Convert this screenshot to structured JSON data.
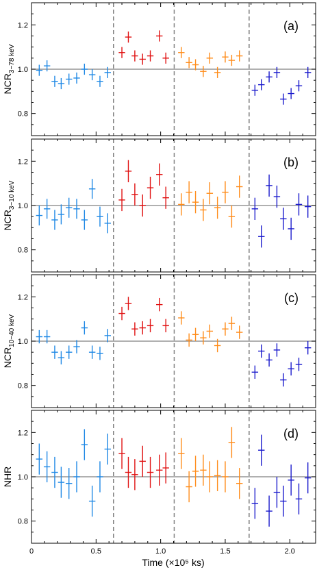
{
  "figure": {
    "xlabel": "Time (×10⁵ ks)",
    "x_ticks": [
      "0",
      "0.5",
      "1.0",
      "1.5",
      "2.0"
    ],
    "y_ticks": [
      "0.8",
      "1.0",
      "1.2"
    ]
  },
  "colors": {
    "segment_1": "#1e88e5",
    "segment_2": "#e01010",
    "segment_3": "#ff8c1a",
    "segment_4": "#1a1acc",
    "reference_line": "#808080",
    "boundary_line": "#808080"
  },
  "chart_data": {
    "type": "scatter",
    "xlim": [
      0,
      2.2
    ],
    "ylim": [
      0.7,
      1.3
    ],
    "x_ticks": [
      0,
      0.5,
      1.0,
      1.5,
      2.0
    ],
    "y_ticks": [
      0.8,
      1.0,
      1.2
    ],
    "reference_y": 1.0,
    "segment_boundaries": [
      0.635,
      1.105,
      1.685
    ],
    "x_error": 0.025,
    "panels": [
      {
        "tag": "(a)",
        "ylabel": "NCR",
        "ylabel_sub": "3−78 keV",
        "series": [
          {
            "segment": 1,
            "x": [
              0.06,
              0.12,
              0.18,
              0.23,
              0.29,
              0.35,
              0.41,
              0.47,
              0.53,
              0.59
            ],
            "y": [
              0.995,
              1.015,
              0.945,
              0.935,
              0.955,
              0.96,
              1.0,
              0.975,
              0.945,
              0.985
            ],
            "err": [
              0.025,
              0.025,
              0.025,
              0.025,
              0.025,
              0.025,
              0.025,
              0.025,
              0.025,
              0.025
            ]
          },
          {
            "segment": 2,
            "x": [
              0.7,
              0.75,
              0.8,
              0.86,
              0.92,
              0.99,
              1.04
            ],
            "y": [
              1.075,
              1.145,
              1.06,
              1.045,
              1.06,
              1.15,
              1.05
            ],
            "err": [
              0.025,
              0.025,
              0.025,
              0.025,
              0.025,
              0.025,
              0.025
            ]
          },
          {
            "segment": 3,
            "x": [
              1.16,
              1.22,
              1.27,
              1.33,
              1.38,
              1.44,
              1.5,
              1.55,
              1.61
            ],
            "y": [
              1.075,
              1.03,
              1.02,
              0.99,
              1.05,
              0.985,
              1.055,
              1.04,
              1.06
            ],
            "err": [
              0.025,
              0.025,
              0.025,
              0.025,
              0.025,
              0.025,
              0.025,
              0.025,
              0.025
            ]
          },
          {
            "segment": 4,
            "x": [
              1.73,
              1.78,
              1.84,
              1.9,
              1.95,
              2.01,
              2.07,
              2.14
            ],
            "y": [
              0.905,
              0.93,
              0.965,
              0.985,
              0.865,
              0.89,
              0.925,
              0.985
            ],
            "err": [
              0.025,
              0.025,
              0.025,
              0.025,
              0.025,
              0.025,
              0.025,
              0.025
            ]
          }
        ]
      },
      {
        "tag": "(b)",
        "ylabel": "NCR",
        "ylabel_sub": "3−10 keV",
        "series": [
          {
            "segment": 1,
            "x": [
              0.06,
              0.12,
              0.18,
              0.23,
              0.29,
              0.35,
              0.41,
              0.47,
              0.53,
              0.59
            ],
            "y": [
              0.955,
              0.985,
              0.935,
              0.96,
              0.99,
              0.985,
              0.935,
              1.075,
              0.95,
              0.92
            ],
            "err": [
              0.045,
              0.045,
              0.045,
              0.045,
              0.045,
              0.045,
              0.045,
              0.045,
              0.045,
              0.045
            ]
          },
          {
            "segment": 2,
            "x": [
              0.7,
              0.75,
              0.8,
              0.86,
              0.92,
              0.99,
              1.04
            ],
            "y": [
              1.025,
              1.155,
              1.05,
              1.0,
              1.08,
              1.14,
              1.035
            ],
            "err": [
              0.05,
              0.05,
              0.05,
              0.05,
              0.05,
              0.05,
              0.05
            ]
          },
          {
            "segment": 3,
            "x": [
              1.16,
              1.22,
              1.27,
              1.33,
              1.38,
              1.44,
              1.5,
              1.55,
              1.61
            ],
            "y": [
              1.005,
              1.06,
              1.015,
              0.98,
              1.055,
              0.99,
              1.06,
              0.95,
              1.085
            ],
            "err": [
              0.05,
              0.05,
              0.05,
              0.05,
              0.05,
              0.05,
              0.05,
              0.05,
              0.05
            ]
          },
          {
            "segment": 4,
            "x": [
              1.73,
              1.78,
              1.84,
              1.9,
              1.95,
              2.01,
              2.07,
              2.14
            ],
            "y": [
              0.985,
              0.86,
              1.09,
              1.04,
              0.94,
              0.895,
              1.005,
              0.995
            ],
            "err": [
              0.05,
              0.05,
              0.05,
              0.05,
              0.05,
              0.05,
              0.05,
              0.05
            ]
          }
        ]
      },
      {
        "tag": "(c)",
        "ylabel": "NCR",
        "ylabel_sub": "10−40 keV",
        "series": [
          {
            "segment": 1,
            "x": [
              0.06,
              0.12,
              0.18,
              0.23,
              0.29,
              0.35,
              0.41,
              0.47,
              0.53,
              0.59
            ],
            "y": [
              1.02,
              1.02,
              0.95,
              0.925,
              0.95,
              0.975,
              1.06,
              0.95,
              0.945,
              1.025
            ],
            "err": [
              0.03,
              0.03,
              0.03,
              0.03,
              0.03,
              0.03,
              0.03,
              0.03,
              0.03,
              0.03
            ]
          },
          {
            "segment": 2,
            "x": [
              0.7,
              0.75,
              0.8,
              0.86,
              0.92,
              0.99,
              1.04
            ],
            "y": [
              1.125,
              1.17,
              1.055,
              1.06,
              1.07,
              1.165,
              1.07
            ],
            "err": [
              0.03,
              0.03,
              0.03,
              0.03,
              0.03,
              0.03,
              0.03
            ]
          },
          {
            "segment": 3,
            "x": [
              1.16,
              1.22,
              1.27,
              1.33,
              1.38,
              1.44,
              1.5,
              1.55,
              1.61
            ],
            "y": [
              1.105,
              1.005,
              1.03,
              1.015,
              1.045,
              0.98,
              1.055,
              1.08,
              1.04
            ],
            "err": [
              0.03,
              0.03,
              0.03,
              0.03,
              0.03,
              0.03,
              0.03,
              0.03,
              0.03
            ]
          },
          {
            "segment": 4,
            "x": [
              1.73,
              1.78,
              1.84,
              1.9,
              1.95,
              2.01,
              2.07,
              2.14
            ],
            "y": [
              0.86,
              0.955,
              0.915,
              0.96,
              0.825,
              0.875,
              0.895,
              0.97
            ],
            "err": [
              0.03,
              0.03,
              0.03,
              0.03,
              0.03,
              0.03,
              0.03,
              0.03
            ]
          }
        ]
      },
      {
        "tag": "(d)",
        "ylabel": "NHR",
        "ylabel_sub": "",
        "series": [
          {
            "segment": 1,
            "x": [
              0.06,
              0.12,
              0.18,
              0.23,
              0.29,
              0.35,
              0.41,
              0.47,
              0.53,
              0.59
            ],
            "y": [
              1.08,
              1.045,
              1.02,
              0.975,
              0.97,
              1.0,
              1.145,
              0.89,
              1.0,
              1.125
            ],
            "err": [
              0.07,
              0.07,
              0.07,
              0.07,
              0.07,
              0.07,
              0.07,
              0.07,
              0.07,
              0.07
            ]
          },
          {
            "segment": 2,
            "x": [
              0.7,
              0.75,
              0.8,
              0.86,
              0.92,
              0.99,
              1.04
            ],
            "y": [
              1.105,
              1.02,
              1.01,
              1.07,
              1.02,
              1.03,
              1.04
            ],
            "err": [
              0.07,
              0.07,
              0.07,
              0.07,
              0.07,
              0.07,
              0.07
            ]
          },
          {
            "segment": 3,
            "x": [
              1.16,
              1.22,
              1.27,
              1.33,
              1.38,
              1.44,
              1.5,
              1.55,
              1.61
            ],
            "y": [
              1.105,
              0.955,
              1.025,
              1.03,
              1.0,
              1.005,
              1.0,
              1.155,
              0.97
            ],
            "err": [
              0.07,
              0.07,
              0.07,
              0.07,
              0.07,
              0.07,
              0.07,
              0.07,
              0.07
            ]
          },
          {
            "segment": 4,
            "x": [
              1.73,
              1.78,
              1.84,
              1.9,
              1.95,
              2.01,
              2.07,
              2.14
            ],
            "y": [
              0.88,
              1.12,
              0.845,
              0.93,
              0.89,
              0.985,
              0.9,
              0.995
            ],
            "err": [
              0.07,
              0.07,
              0.07,
              0.07,
              0.07,
              0.07,
              0.07,
              0.07
            ]
          }
        ]
      }
    ]
  }
}
